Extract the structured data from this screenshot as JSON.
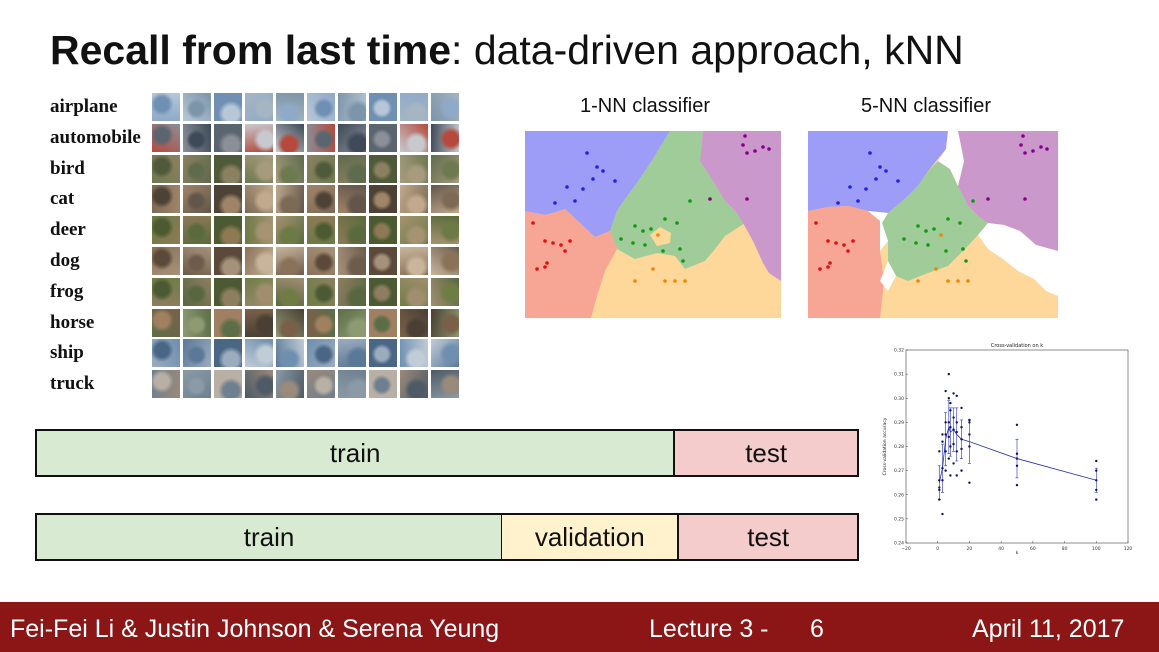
{
  "slide": {
    "title_bold": "Recall from last time",
    "title_rest": ": data-driven approach, kNN"
  },
  "cifar": {
    "classes": [
      "airplane",
      "automobile",
      "bird",
      "cat",
      "deer",
      "dog",
      "frog",
      "horse",
      "ship",
      "truck"
    ]
  },
  "classifiers": {
    "nn1_title": "1-NN classifier",
    "nn5_title": "5-NN classifier"
  },
  "splits": {
    "split1": [
      {
        "label": "train",
        "fraction": 0.776
      },
      {
        "label": "test",
        "fraction": 0.224
      }
    ],
    "split2": [
      {
        "label": "train",
        "fraction": 0.566
      },
      {
        "label": "validation",
        "fraction": 0.215
      },
      {
        "label": "test",
        "fraction": 0.219
      }
    ]
  },
  "chart_data": {
    "type": "scatter",
    "title": "Cross-validation on k",
    "xlabel": "k",
    "ylabel": "Cross-validation accuracy",
    "xlim": [
      -20,
      120
    ],
    "ylim": [
      0.24,
      0.32
    ],
    "xticks": [
      "−20",
      "0",
      "20",
      "40",
      "60",
      "80",
      "100",
      "120"
    ],
    "yticks": [
      "0.24",
      "0.25",
      "0.26",
      "0.27",
      "0.28",
      "0.29",
      "0.30",
      "0.31",
      "0.32"
    ],
    "points": [
      [
        1,
        0.263
      ],
      [
        1,
        0.266
      ],
      [
        1,
        0.278
      ],
      [
        1,
        0.258
      ],
      [
        1,
        0.262
      ],
      [
        3,
        0.252
      ],
      [
        3,
        0.266
      ],
      [
        3,
        0.271
      ],
      [
        3,
        0.282
      ],
      [
        3,
        0.285
      ],
      [
        5,
        0.27
      ],
      [
        5,
        0.278
      ],
      [
        5,
        0.285
      ],
      [
        5,
        0.29
      ],
      [
        5,
        0.303
      ],
      [
        7,
        0.275
      ],
      [
        7,
        0.284
      ],
      [
        7,
        0.29
      ],
      [
        7,
        0.3
      ],
      [
        7,
        0.31
      ],
      [
        8,
        0.268
      ],
      [
        8,
        0.28
      ],
      [
        8,
        0.288
      ],
      [
        8,
        0.295
      ],
      [
        8,
        0.298
      ],
      [
        10,
        0.273
      ],
      [
        10,
        0.281
      ],
      [
        10,
        0.287
      ],
      [
        10,
        0.292
      ],
      [
        10,
        0.302
      ],
      [
        12,
        0.268
      ],
      [
        12,
        0.278
      ],
      [
        12,
        0.286
      ],
      [
        12,
        0.29
      ],
      [
        12,
        0.301
      ],
      [
        15,
        0.27
      ],
      [
        15,
        0.279
      ],
      [
        15,
        0.283
      ],
      [
        15,
        0.288
      ],
      [
        15,
        0.296
      ],
      [
        20,
        0.265
      ],
      [
        20,
        0.28
      ],
      [
        20,
        0.285
      ],
      [
        20,
        0.29
      ],
      [
        20,
        0.291
      ],
      [
        50,
        0.264
      ],
      [
        50,
        0.272
      ],
      [
        50,
        0.275
      ],
      [
        50,
        0.277
      ],
      [
        50,
        0.289
      ],
      [
        100,
        0.258
      ],
      [
        100,
        0.262
      ],
      [
        100,
        0.266
      ],
      [
        100,
        0.27
      ],
      [
        100,
        0.274
      ]
    ],
    "mean_line": {
      "x": [
        1,
        3,
        5,
        7,
        8,
        10,
        12,
        15,
        20,
        50,
        100
      ],
      "y": [
        0.265,
        0.271,
        0.283,
        0.288,
        0.286,
        0.287,
        0.285,
        0.283,
        0.282,
        0.275,
        0.266
      ]
    },
    "error_std": [
      0.007,
      0.01,
      0.011,
      0.011,
      0.01,
      0.009,
      0.011,
      0.008,
      0.009,
      0.008,
      0.005
    ]
  },
  "footer": {
    "authors": "Fei-Fei Li & Justin Johnson & Serena Yeung",
    "lecture": "Lecture 3 -",
    "page": "6",
    "date": "April 11, 2017"
  }
}
